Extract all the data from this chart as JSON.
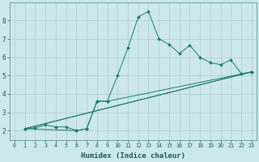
{
  "xlabel": "Humidex (Indice chaleur)",
  "ylabel": "",
  "bg_color": "#cde8ed",
  "grid_color": "#aacccc",
  "line_color": "#1a7a6e",
  "xlim": [
    -0.5,
    23.5
  ],
  "ylim": [
    1.5,
    9.0
  ],
  "xticks": [
    0,
    1,
    2,
    3,
    4,
    5,
    6,
    7,
    8,
    9,
    10,
    11,
    12,
    13,
    14,
    15,
    16,
    17,
    18,
    19,
    20,
    21,
    22,
    23
  ],
  "yticks": [
    2,
    3,
    4,
    5,
    6,
    7,
    8
  ],
  "series": [
    {
      "x": [
        1,
        2,
        3,
        4,
        5,
        6,
        7,
        8,
        9,
        10,
        11,
        12,
        13,
        14,
        15,
        16,
        17,
        18,
        19,
        20,
        21,
        22,
        23
      ],
      "y": [
        2.1,
        2.15,
        2.3,
        2.2,
        2.2,
        2.0,
        2.1,
        3.6,
        3.6,
        5.0,
        6.5,
        8.2,
        8.5,
        7.0,
        6.7,
        6.2,
        6.65,
        6.0,
        5.7,
        5.6,
        5.85,
        5.1,
        5.2
      ],
      "marker": true
    },
    {
      "x": [
        1,
        6,
        7,
        8,
        9,
        23
      ],
      "y": [
        2.1,
        2.0,
        2.1,
        3.6,
        3.6,
        5.2
      ],
      "marker": true
    },
    {
      "x": [
        1,
        23
      ],
      "y": [
        2.1,
        5.2
      ],
      "marker": false
    },
    {
      "x": [
        1,
        23
      ],
      "y": [
        2.1,
        5.2
      ],
      "marker": false
    }
  ]
}
